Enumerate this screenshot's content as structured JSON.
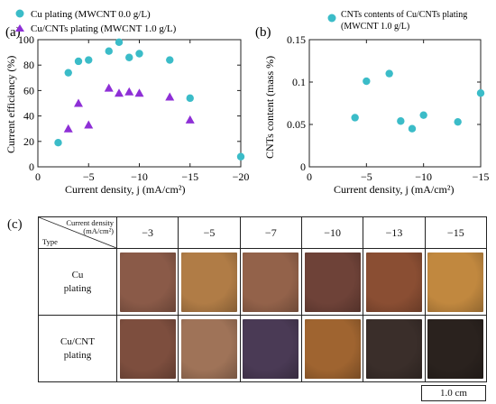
{
  "chart_data": [
    {
      "type": "scatter",
      "panel_label": "(a)",
      "xlabel": "Current density, j (mA/cm²)",
      "ylabel": "Current efficiency (%)",
      "xlim": [
        0,
        -20
      ],
      "ylim": [
        0,
        100
      ],
      "xticks": [
        "0",
        "−5",
        "−10",
        "−15",
        "−20"
      ],
      "yticks": [
        "0",
        "20",
        "40",
        "60",
        "80",
        "100"
      ],
      "legend_position": "top-left",
      "series": [
        {
          "name": "Cu plating (MWCNT 0.0 g/L)",
          "marker": "circle",
          "color": "#3bbcc8",
          "x": [
            -2,
            -3,
            -4,
            -5,
            -7,
            -8,
            -9,
            -10,
            -13,
            -15,
            -20
          ],
          "y": [
            19,
            74,
            83,
            84,
            91,
            98,
            86,
            89,
            84,
            54,
            8
          ]
        },
        {
          "name": "Cu/CNTs plating (MWCNT 1.0 g/L)",
          "marker": "triangle",
          "color": "#8e2fd6",
          "x": [
            -3,
            -4,
            -5,
            -7,
            -8,
            -9,
            -10,
            -13,
            -15
          ],
          "y": [
            30,
            50,
            33,
            62,
            58,
            59,
            58,
            55,
            37
          ]
        }
      ]
    },
    {
      "type": "scatter",
      "panel_label": "(b)",
      "xlabel": "Current density, j (mA/cm²)",
      "ylabel": "CNTs content (mass %)",
      "xlim": [
        0,
        -15
      ],
      "ylim": [
        0,
        0.15
      ],
      "xticks": [
        "0",
        "−5",
        "−10",
        "−15"
      ],
      "yticks": [
        "0",
        "0.05",
        "0.1",
        "0.15"
      ],
      "legend_position": "top",
      "series": [
        {
          "name": "CNTs contents of Cu/CNTs plating (MWCNT 1.0 g/L)",
          "marker": "circle",
          "color": "#3bbcc8",
          "x": [
            -4,
            -5,
            -7,
            -8,
            -9,
            -10,
            -13,
            -15
          ],
          "y": [
            0.058,
            0.101,
            0.11,
            0.054,
            0.045,
            0.061,
            0.053,
            0.087
          ]
        }
      ]
    }
  ],
  "panel_c": {
    "label": "(c)",
    "header_top": "Current density",
    "header_unit": "(mA/cm²)",
    "header_type": "Type",
    "columns": [
      "−3",
      "−5",
      "−7",
      "−10",
      "−13",
      "−15"
    ],
    "rows": [
      {
        "type_line1": "Cu",
        "type_line2": "plating",
        "sample_colors": [
          "#8a5a48",
          "#b07c46",
          "#93624a",
          "#6e4238",
          "#8a4e33",
          "#c1883f"
        ]
      },
      {
        "type_line1": "Cu/CNT",
        "type_line2": "plating",
        "sample_colors": [
          "#7d4e3e",
          "#9f7358",
          "#4a3a55",
          "#9f6430",
          "#3a2e2a",
          "#2a221e"
        ]
      }
    ],
    "scale_bar": "1.0 cm"
  }
}
